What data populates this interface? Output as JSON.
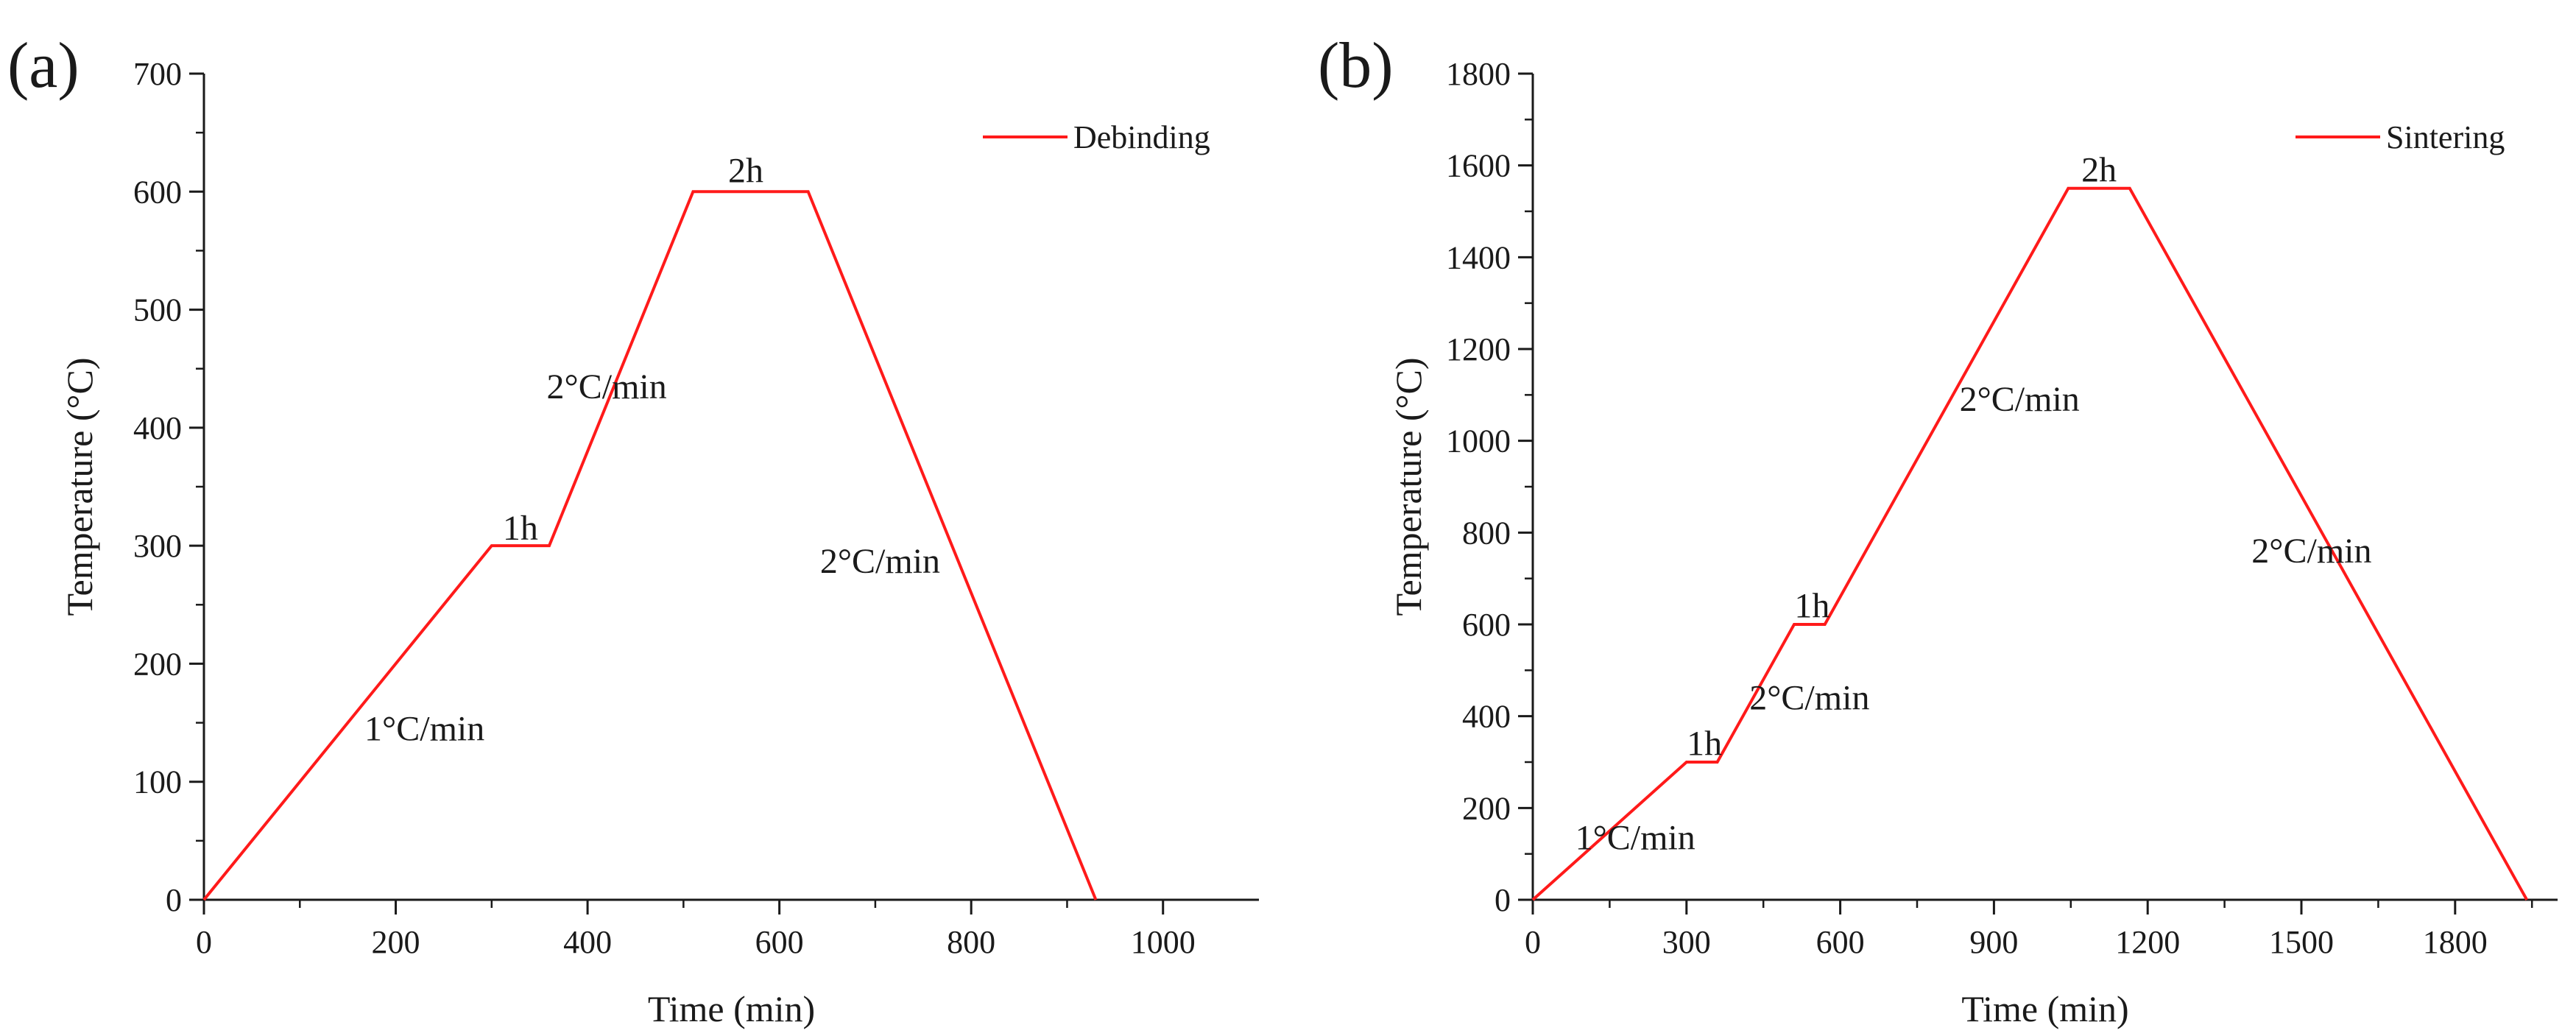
{
  "colors": {
    "series": "#ff1a1a",
    "axis": "#1a1a1a"
  },
  "chart_data": [
    {
      "type": "line",
      "panel_label": "(a)",
      "xlabel": "Time (min)",
      "ylabel": "Temperature (°C)",
      "xlim": [
        0,
        1100
      ],
      "ylim": [
        0,
        700
      ],
      "x_ticks": [
        0,
        200,
        400,
        600,
        800,
        1000
      ],
      "x_tick_labels": [
        "0",
        "200",
        "400",
        "600",
        "800",
        "1000"
      ],
      "y_ticks": [
        0,
        100,
        200,
        300,
        400,
        500,
        600,
        700
      ],
      "y_tick_labels": [
        "0",
        "100",
        "200",
        "300",
        "400",
        "500",
        "600",
        "700"
      ],
      "legend_position": "top-right",
      "series": [
        {
          "name": "Debinding",
          "x": [
            0,
            300,
            360,
            510,
            630,
            930
          ],
          "y": [
            0,
            300,
            300,
            600,
            600,
            0
          ]
        }
      ],
      "annotations": [
        {
          "text": "1°C/min",
          "x": 230,
          "y": 135
        },
        {
          "text": "1h",
          "x": 330,
          "y": 305
        },
        {
          "text": "2°C/min",
          "x": 420,
          "y": 425
        },
        {
          "text": "2h",
          "x": 565,
          "y": 608
        },
        {
          "text": "2°C/min",
          "x": 705,
          "y": 277
        }
      ]
    },
    {
      "type": "line",
      "panel_label": "(b)",
      "xlabel": "Time (min)",
      "ylabel": "Temperature (°C)",
      "xlim": [
        0,
        2000
      ],
      "ylim": [
        0,
        1800
      ],
      "x_ticks": [
        0,
        300,
        600,
        900,
        1200,
        1500,
        1800
      ],
      "x_tick_labels": [
        "0",
        "300",
        "600",
        "900",
        "1200",
        "1500",
        "1800"
      ],
      "y_ticks": [
        0,
        200,
        400,
        600,
        800,
        1000,
        1200,
        1400,
        1600,
        1800
      ],
      "y_tick_labels": [
        "0",
        "200",
        "400",
        "600",
        "800",
        "1000",
        "1200",
        "1400",
        "1600",
        "1800"
      ],
      "legend_position": "top-right",
      "series": [
        {
          "name": "Sintering",
          "x": [
            0,
            300,
            360,
            510,
            570,
            1045,
            1165,
            1940
          ],
          "y": [
            0,
            300,
            300,
            600,
            600,
            1550,
            1550,
            0
          ]
        }
      ],
      "annotations": [
        {
          "text": "1°C/min",
          "x": 200,
          "y": 110
        },
        {
          "text": "1h",
          "x": 335,
          "y": 315
        },
        {
          "text": "2°C/min",
          "x": 540,
          "y": 415
        },
        {
          "text": "1h",
          "x": 545,
          "y": 615
        },
        {
          "text": "2°C/min",
          "x": 950,
          "y": 1065
        },
        {
          "text": "2h",
          "x": 1105,
          "y": 1565
        },
        {
          "text": "2°C/min",
          "x": 1520,
          "y": 735
        }
      ]
    }
  ]
}
